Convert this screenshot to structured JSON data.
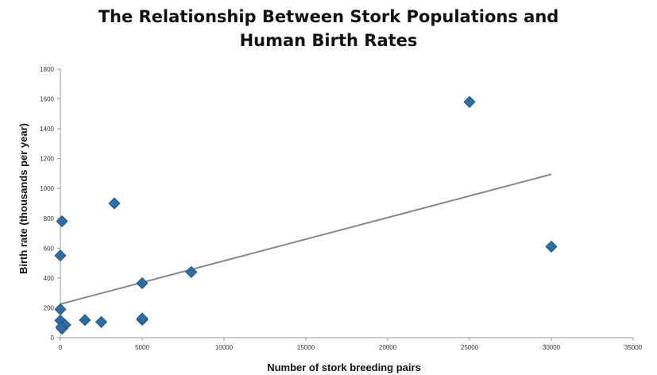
{
  "chart_data": {
    "type": "scatter",
    "title_line1": "The Relationship Between Stork Populations and",
    "title_line2": "Human Birth Rates",
    "xlabel": "Number of stork breeding pairs",
    "ylabel": "Birth rate (thousands per year)",
    "xlim": [
      0,
      35000
    ],
    "ylim": [
      0,
      1800
    ],
    "xticks": [
      0,
      5000,
      10000,
      15000,
      20000,
      25000,
      30000,
      35000
    ],
    "yticks": [
      0,
      200,
      400,
      600,
      800,
      1000,
      1200,
      1400,
      1600,
      1800
    ],
    "grid": false,
    "marker": "diamond",
    "marker_color": "#2e6da4",
    "trendline_color": "#888888",
    "points": [
      {
        "x": 100,
        "y": 780
      },
      {
        "x": 3300,
        "y": 900
      },
      {
        "x": 0,
        "y": 550
      },
      {
        "x": 25000,
        "y": 1580
      },
      {
        "x": 30000,
        "y": 610
      },
      {
        "x": 8000,
        "y": 440
      },
      {
        "x": 5000,
        "y": 365
      },
      {
        "x": 0,
        "y": 190
      },
      {
        "x": 0,
        "y": 115
      },
      {
        "x": 1500,
        "y": 118
      },
      {
        "x": 2500,
        "y": 105
      },
      {
        "x": 5000,
        "y": 120
      },
      {
        "x": 5000,
        "y": 128
      },
      {
        "x": 300,
        "y": 85
      },
      {
        "x": 100,
        "y": 60
      },
      {
        "x": 50,
        "y": 70
      }
    ],
    "trendline": {
      "x": [
        0,
        30000
      ],
      "y": [
        225,
        1095
      ]
    }
  }
}
